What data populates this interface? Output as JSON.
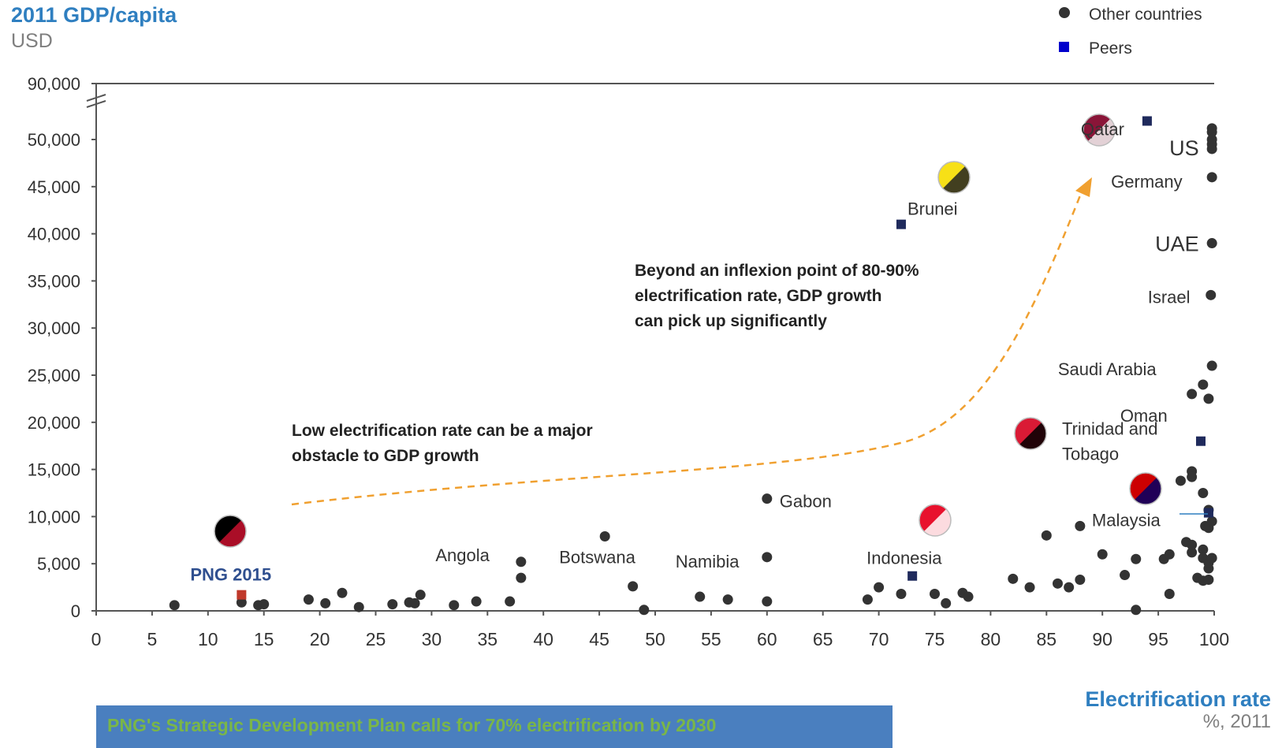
{
  "y_title": "2011 GDP/capita",
  "y_unit": "USD",
  "x_title": "Electrification rate",
  "x_unit": "%, 2011",
  "legend": {
    "other": "Other countries",
    "peers": "Peers"
  },
  "banner_text": "PNG's Strategic Development Plan calls for 70% electrification by 2030",
  "colors": {
    "other": "#333333",
    "peers": "#1f2a5c",
    "png": "#c0392b",
    "title": "#2f7fc0",
    "arrow": "#f0a030",
    "banner": "#4a7fbf"
  },
  "chart_data": {
    "type": "scatter",
    "x_ticks": [
      "0",
      "5",
      "10",
      "15",
      "20",
      "25",
      "30",
      "35",
      "40",
      "45",
      "50",
      "55",
      "60",
      "65",
      "70",
      "75",
      "80",
      "85",
      "90",
      "95",
      "100"
    ],
    "y_ticks": [
      "0",
      "5,000",
      "10,000",
      "15,000",
      "20,000",
      "25,000",
      "30,000",
      "35,000",
      "40,000",
      "45,000",
      "50,000",
      "90,000"
    ],
    "xlim": [
      0,
      100
    ],
    "ylim": [
      0,
      90000
    ],
    "y_axis_break": "between 50,000 and 90,000",
    "series": [
      {
        "name": "Other countries",
        "marker": "circle",
        "points": [
          [
            7,
            600
          ],
          [
            13,
            900
          ],
          [
            14.5,
            600
          ],
          [
            15,
            700
          ],
          [
            19,
            1200
          ],
          [
            20.5,
            800
          ],
          [
            22,
            1900
          ],
          [
            23.5,
            400
          ],
          [
            26.5,
            700
          ],
          [
            28,
            900
          ],
          [
            28.5,
            800
          ],
          [
            29,
            1700
          ],
          [
            32,
            600
          ],
          [
            34,
            1000
          ],
          [
            37,
            1000
          ],
          [
            38,
            5200
          ],
          [
            38,
            3500
          ],
          [
            45.5,
            7900
          ],
          [
            48,
            2600
          ],
          [
            49,
            100
          ],
          [
            54,
            1500
          ],
          [
            56.5,
            1200
          ],
          [
            60,
            1000
          ],
          [
            60,
            5700
          ],
          [
            60,
            11900
          ],
          [
            69,
            1200
          ],
          [
            70,
            2500
          ],
          [
            72,
            1800
          ],
          [
            75,
            1800
          ],
          [
            76,
            800
          ],
          [
            77.5,
            1900
          ],
          [
            78,
            1500
          ],
          [
            82,
            3400
          ],
          [
            83.5,
            2500
          ],
          [
            85,
            8000
          ],
          [
            86,
            2900
          ],
          [
            87,
            2500
          ],
          [
            88,
            3300
          ],
          [
            88,
            9000
          ],
          [
            90,
            6000
          ],
          [
            92,
            3800
          ],
          [
            93,
            5500
          ],
          [
            93,
            100
          ],
          [
            95.5,
            5500
          ],
          [
            96,
            6000
          ],
          [
            96,
            1800
          ],
          [
            97,
            13800
          ],
          [
            97.5,
            7300
          ],
          [
            98,
            6200
          ],
          [
            98,
            14800
          ],
          [
            98,
            14200
          ],
          [
            98,
            7000
          ],
          [
            98,
            23000
          ],
          [
            98.5,
            3500
          ],
          [
            99,
            24000
          ],
          [
            99,
            6500
          ],
          [
            99,
            5600
          ],
          [
            99,
            3200
          ],
          [
            99,
            12500
          ],
          [
            99.2,
            9000
          ],
          [
            99.5,
            4500
          ],
          [
            99.5,
            8800
          ],
          [
            99.5,
            3300
          ],
          [
            99.5,
            5100
          ],
          [
            99.5,
            10700
          ],
          [
            99.5,
            22500
          ],
          [
            99.7,
            33500
          ],
          [
            99.8,
            39000
          ],
          [
            99.8,
            46000
          ],
          [
            99.8,
            49500
          ],
          [
            99.8,
            26000
          ],
          [
            99.8,
            9500
          ],
          [
            99.8,
            5600
          ],
          [
            99.8,
            52000
          ],
          [
            99.8,
            53000
          ],
          [
            99.8,
            50000
          ],
          [
            99.8,
            49000
          ]
        ]
      },
      {
        "name": "Peers",
        "marker": "square",
        "points": [
          [
            13,
            1700
          ],
          [
            72,
            41000
          ],
          [
            73,
            3700
          ],
          [
            94,
            55000
          ],
          [
            98.8,
            18000
          ],
          [
            99.5,
            10400
          ]
        ]
      }
    ],
    "labels": [
      {
        "text": "PNG 2015",
        "x": 13,
        "y": 1700
      },
      {
        "text": "Angola",
        "x": 38,
        "y": 5200
      },
      {
        "text": "Botswana",
        "x": 45.5,
        "y": 7900
      },
      {
        "text": "Namibia",
        "x": 60,
        "y": 5700
      },
      {
        "text": "Gabon",
        "x": 60,
        "y": 11900
      },
      {
        "text": "Indonesia",
        "x": 73,
        "y": 3700
      },
      {
        "text": "Brunei",
        "x": 72,
        "y": 41000
      },
      {
        "text": "Qatar",
        "x": 94,
        "y": 55000
      },
      {
        "text": "US",
        "x": 99.8,
        "y": 49500
      },
      {
        "text": "Germany",
        "x": 99.8,
        "y": 46000
      },
      {
        "text": "UAE",
        "x": 99.8,
        "y": 39000
      },
      {
        "text": "Israel",
        "x": 99.7,
        "y": 33500
      },
      {
        "text": "Saudi Arabia",
        "x": 99,
        "y": 24000
      },
      {
        "text": "Oman",
        "x": 99,
        "y": 22500
      },
      {
        "text": "Trinidad and",
        "x": 98.8,
        "y": 18000
      },
      {
        "text": "Tobago",
        "x": 98.8,
        "y": 18000
      },
      {
        "text": "Malaysia",
        "x": 99.5,
        "y": 10400
      }
    ],
    "annotations": [
      {
        "text_lines": [
          "Low electrification rate can be a major",
          "obstacle to GDP growth"
        ]
      },
      {
        "text_lines": [
          "Beyond an inflexion point of 80-90%",
          "electrification rate, GDP growth",
          "can pick up significantly"
        ]
      }
    ],
    "flags": [
      "papua-new-guinea-flag",
      "brunei-flag",
      "qatar-flag",
      "indonesia-flag",
      "trinidad-and-tobago-flag",
      "malaysia-flag"
    ]
  }
}
